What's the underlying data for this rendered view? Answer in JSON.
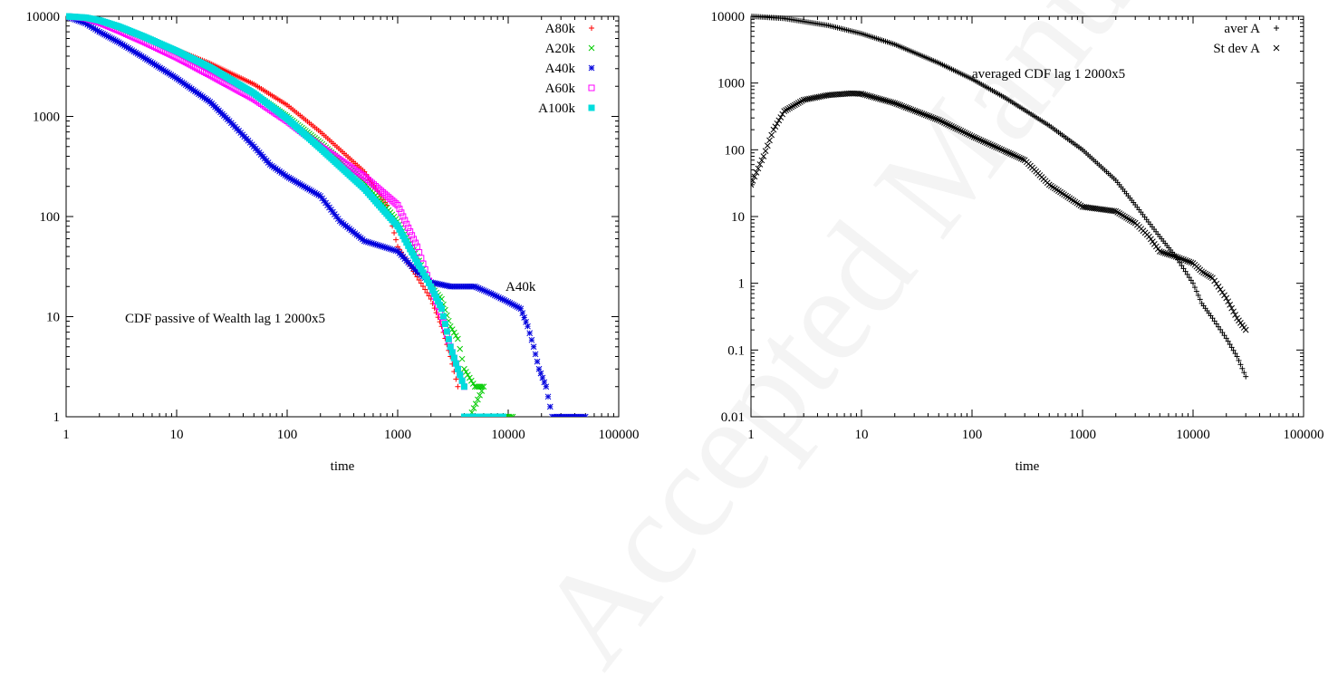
{
  "watermark": "Accepted Manuscript",
  "chart_data": [
    {
      "type": "scatter",
      "title": "",
      "annotation": "CDF passive of Wealth lag 1 2000x5",
      "label_callout": "A40k",
      "xlabel": "time",
      "ylabel": "",
      "xscale": "log",
      "yscale": "log",
      "xlim": [
        1,
        100000
      ],
      "ylim": [
        1,
        10000
      ],
      "xticks": [
        "1",
        "10",
        "100",
        "1000",
        "10000",
        "100000"
      ],
      "yticks": [
        "1",
        "10",
        "100",
        "1000",
        "10000"
      ],
      "legend_position": "top-right",
      "series": [
        {
          "name": "A80k",
          "color": "#ff0000",
          "marker": "plus",
          "points": [
            [
              1,
              10000
            ],
            [
              1.5,
              9700
            ],
            [
              2,
              9000
            ],
            [
              3,
              7800
            ],
            [
              5,
              6300
            ],
            [
              10,
              4600
            ],
            [
              20,
              3400
            ],
            [
              50,
              2100
            ],
            [
              100,
              1300
            ],
            [
              200,
              700
            ],
            [
              500,
              280
            ],
            [
              800,
              130
            ],
            [
              1000,
              50
            ],
            [
              1500,
              25
            ],
            [
              2000,
              15
            ],
            [
              2500,
              8
            ],
            [
              3000,
              4
            ],
            [
              3500,
              2
            ]
          ]
        },
        {
          "name": "A20k",
          "color": "#00cc00",
          "marker": "cross",
          "points": [
            [
              1,
              10000
            ],
            [
              1.5,
              9700
            ],
            [
              2,
              9000
            ],
            [
              3,
              7700
            ],
            [
              5,
              6200
            ],
            [
              10,
              4400
            ],
            [
              20,
              3000
            ],
            [
              50,
              1700
            ],
            [
              100,
              1000
            ],
            [
              200,
              550
            ],
            [
              500,
              220
            ],
            [
              1000,
              90
            ],
            [
              1500,
              40
            ],
            [
              2000,
              20
            ],
            [
              2500,
              15
            ],
            [
              3000,
              8
            ],
            [
              3500,
              6
            ],
            [
              4000,
              3
            ],
            [
              5000,
              2
            ],
            [
              6000,
              2
            ],
            [
              4500,
              1
            ],
            [
              11000,
              1
            ]
          ]
        },
        {
          "name": "A40k",
          "color": "#0000dd",
          "marker": "star",
          "points": [
            [
              1,
              10000
            ],
            [
              1.5,
              8500
            ],
            [
              2,
              7000
            ],
            [
              3,
              5500
            ],
            [
              5,
              3900
            ],
            [
              10,
              2400
            ],
            [
              20,
              1400
            ],
            [
              30,
              900
            ],
            [
              50,
              500
            ],
            [
              70,
              330
            ],
            [
              100,
              250
            ],
            [
              200,
              160
            ],
            [
              300,
              90
            ],
            [
              500,
              57
            ],
            [
              1000,
              45
            ],
            [
              1500,
              28
            ],
            [
              2000,
              22
            ],
            [
              3000,
              20
            ],
            [
              5000,
              20
            ],
            [
              7000,
              17
            ],
            [
              10000,
              14
            ],
            [
              13000,
              12
            ],
            [
              15000,
              8
            ],
            [
              17000,
              5
            ],
            [
              19000,
              3
            ],
            [
              22000,
              2
            ],
            [
              25000,
              1
            ],
            [
              50000,
              1
            ]
          ]
        },
        {
          "name": "A60k",
          "color": "#ff00ff",
          "marker": "square",
          "points": [
            [
              1,
              10000
            ],
            [
              1.5,
              9600
            ],
            [
              2,
              8700
            ],
            [
              3,
              7200
            ],
            [
              5,
              5600
            ],
            [
              10,
              3900
            ],
            [
              20,
              2600
            ],
            [
              50,
              1500
            ],
            [
              100,
              900
            ],
            [
              200,
              500
            ],
            [
              500,
              250
            ],
            [
              1000,
              130
            ],
            [
              1500,
              50
            ],
            [
              2000,
              20
            ],
            [
              2500,
              10
            ],
            [
              3000,
              5
            ],
            [
              3500,
              3
            ],
            [
              4000,
              2
            ]
          ]
        },
        {
          "name": "A100k",
          "color": "#00dddd",
          "marker": "filled-square",
          "points": [
            [
              1,
              10000
            ],
            [
              1.5,
              9700
            ],
            [
              2,
              9100
            ],
            [
              3,
              7900
            ],
            [
              5,
              6300
            ],
            [
              10,
              4500
            ],
            [
              20,
              3100
            ],
            [
              50,
              1700
            ],
            [
              100,
              950
            ],
            [
              200,
              480
            ],
            [
              500,
              190
            ],
            [
              1000,
              80
            ],
            [
              1500,
              35
            ],
            [
              2000,
              20
            ],
            [
              2500,
              12
            ],
            [
              3000,
              5
            ],
            [
              3500,
              3
            ],
            [
              4000,
              2
            ],
            [
              4000,
              1
            ],
            [
              9000,
              1
            ]
          ]
        }
      ]
    },
    {
      "type": "scatter",
      "title": "",
      "annotation": "averaged CDF lag 1 2000x5",
      "xlabel": "time",
      "ylabel": "",
      "xscale": "log",
      "yscale": "log",
      "xlim": [
        1,
        100000
      ],
      "ylim": [
        0.01,
        10000
      ],
      "xticks": [
        "1",
        "10",
        "100",
        "1000",
        "10000",
        "100000"
      ],
      "yticks": [
        "0.01",
        "0.1",
        "1",
        "10",
        "100",
        "1000",
        "10000"
      ],
      "legend_position": "top-right",
      "series": [
        {
          "name": "aver A",
          "color": "#000000",
          "marker": "plus",
          "points": [
            [
              1,
              10000
            ],
            [
              2,
              9300
            ],
            [
              5,
              7300
            ],
            [
              10,
              5500
            ],
            [
              20,
              3800
            ],
            [
              50,
              2000
            ],
            [
              100,
              1150
            ],
            [
              200,
              600
            ],
            [
              500,
              230
            ],
            [
              1000,
              100
            ],
            [
              2000,
              35
            ],
            [
              3000,
              15
            ],
            [
              5000,
              5
            ],
            [
              7000,
              2.5
            ],
            [
              10000,
              1
            ],
            [
              12000,
              0.5
            ],
            [
              15000,
              0.3
            ],
            [
              20000,
              0.15
            ],
            [
              25000,
              0.08
            ],
            [
              30000,
              0.04
            ]
          ]
        },
        {
          "name": "St dev A",
          "color": "#000000",
          "marker": "cross",
          "points": [
            [
              1,
              30
            ],
            [
              1.3,
              80
            ],
            [
              1.6,
              200
            ],
            [
              2,
              380
            ],
            [
              3,
              560
            ],
            [
              5,
              660
            ],
            [
              8,
              700
            ],
            [
              10,
              690
            ],
            [
              20,
              500
            ],
            [
              50,
              280
            ],
            [
              100,
              160
            ],
            [
              200,
              95
            ],
            [
              300,
              70
            ],
            [
              500,
              30
            ],
            [
              1000,
              14
            ],
            [
              2000,
              12
            ],
            [
              3000,
              8
            ],
            [
              4000,
              5
            ],
            [
              5000,
              3
            ],
            [
              7000,
              2.5
            ],
            [
              10000,
              2
            ],
            [
              12000,
              1.5
            ],
            [
              15000,
              1.2
            ],
            [
              20000,
              0.6
            ],
            [
              25000,
              0.3
            ],
            [
              30000,
              0.2
            ]
          ]
        }
      ]
    }
  ]
}
